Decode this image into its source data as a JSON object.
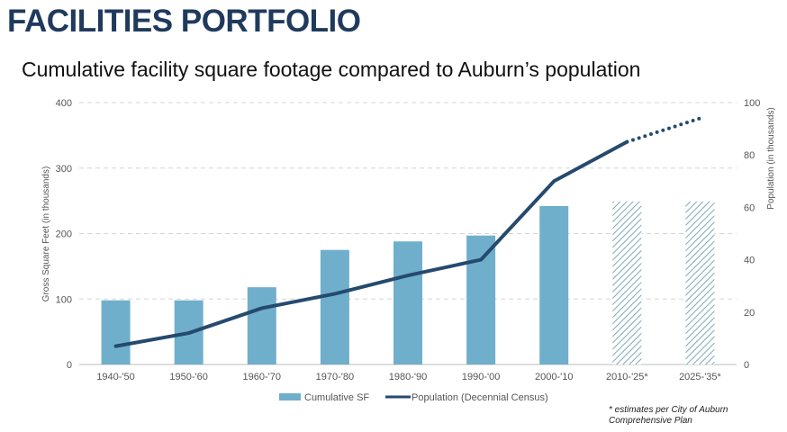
{
  "header": {
    "title": "FACILITIES PORTFOLIO",
    "subtitle": "Cumulative facility square footage compared to Auburn’s population"
  },
  "footnote": "* estimates per City of Auburn Comprehensive Plan",
  "colors": {
    "bar": "#6fafcc",
    "line": "#254a6e",
    "grid": "#d6d6d6"
  },
  "chart_data": {
    "type": "bar",
    "categories": [
      "1940-'50",
      "1950-'60",
      "1960-'70",
      "1970-'80",
      "1980-'90",
      "1990-'00",
      "2000-'10",
      "2010-'25*",
      "2025-'35*"
    ],
    "series": [
      {
        "name": "Cumulative SF",
        "axis": "left",
        "values": [
          98,
          98,
          118,
          175,
          188,
          197,
          242,
          249,
          249
        ],
        "estimated": [
          false,
          false,
          false,
          false,
          false,
          false,
          false,
          true,
          true
        ]
      },
      {
        "name": "Population (Decennial Census)",
        "axis": "right",
        "type": "line",
        "values": [
          7,
          12,
          21.5,
          27,
          34,
          40,
          70,
          85,
          94
        ],
        "estimated_from_index": 7
      }
    ],
    "ylabel": "Gross Square Feet (in thousands)",
    "ylim": [
      0,
      400
    ],
    "yticks": [
      0,
      100,
      200,
      300,
      400
    ],
    "y2label": "Population (in thousands)",
    "y2lim": [
      0,
      100
    ],
    "y2ticks": [
      0,
      20,
      40,
      60,
      80,
      100
    ],
    "grid": true,
    "legend": "bottom-center"
  }
}
